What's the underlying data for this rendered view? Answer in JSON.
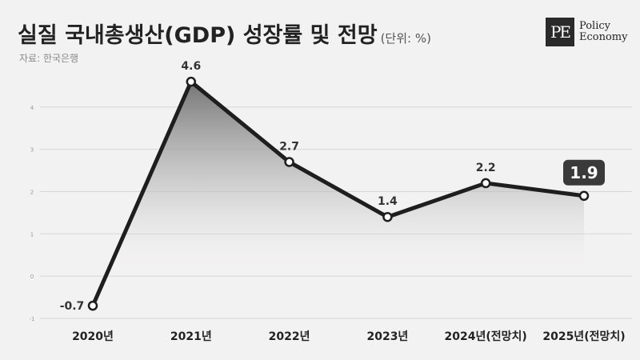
{
  "title": "실질 국내총생산(GDP) 성장률 및 전망",
  "unit": "(단위: %)",
  "source": "자료: 한국은행",
  "logo": {
    "mark": "PE",
    "line1": "Policy",
    "line2": "Economy"
  },
  "chart_data": {
    "type": "area",
    "categories": [
      "2020년",
      "2021년",
      "2022년",
      "2023년",
      "2024년(전망치)",
      "2025년(전망치)"
    ],
    "values": [
      -0.7,
      4.6,
      2.7,
      1.4,
      2.2,
      1.9
    ],
    "value_labels": [
      "-0.7",
      "4.6",
      "2.7",
      "1.4",
      "2.2",
      "1.9"
    ],
    "highlight_index": 5,
    "yticks": [
      -1,
      0,
      1,
      2,
      3,
      4
    ],
    "ytick_labels": [
      "-1",
      "0",
      "1",
      "2",
      "3",
      "4"
    ],
    "ylim": [
      -1,
      5
    ],
    "grid": true,
    "colors": {
      "line": "#1e1e1e",
      "grid": "#d6d6d6",
      "highlight_bg": "#3a3a3a",
      "marker_fill": "#ffffff"
    }
  }
}
